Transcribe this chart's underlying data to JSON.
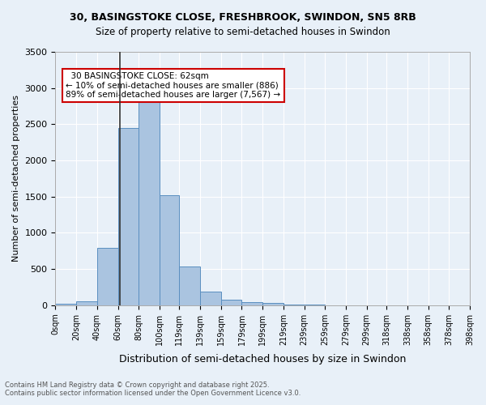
{
  "title_line1": "30, BASINGSTOKE CLOSE, FRESHBROOK, SWINDON, SN5 8RB",
  "title_line2": "Size of property relative to semi-detached houses in Swindon",
  "xlabel": "Distribution of semi-detached houses by size in Swindon",
  "ylabel": "Number of semi-detached properties",
  "bin_labels": [
    "0sqm",
    "20sqm",
    "40sqm",
    "60sqm",
    "80sqm",
    "100sqm",
    "119sqm",
    "139sqm",
    "159sqm",
    "179sqm",
    "199sqm",
    "219sqm",
    "239sqm",
    "259sqm",
    "279sqm",
    "299sqm",
    "318sqm",
    "338sqm",
    "358sqm",
    "378sqm",
    "398sqm"
  ],
  "bin_edges": [
    0,
    20,
    40,
    60,
    80,
    100,
    119,
    139,
    159,
    179,
    199,
    219,
    239,
    259,
    279,
    299,
    318,
    338,
    358,
    378,
    398
  ],
  "bar_heights": [
    20,
    50,
    790,
    2450,
    2890,
    1520,
    540,
    185,
    75,
    45,
    35,
    10,
    5,
    3,
    2,
    1,
    0,
    0,
    0,
    0
  ],
  "bar_color": "#aac4e0",
  "bar_edge_color": "#5a8fc0",
  "property_size": 62,
  "property_label": "30 BASINGSTOKE CLOSE: 62sqm",
  "smaller_pct": "10%",
  "smaller_count": "886",
  "larger_pct": "89%",
  "larger_count": "7,567",
  "annotation_box_color": "#ffffff",
  "annotation_box_edge": "#cc0000",
  "vline_color": "#333333",
  "background_color": "#e8f0f8",
  "grid_color": "#ffffff",
  "ylim": [
    0,
    3500
  ],
  "yticks": [
    0,
    500,
    1000,
    1500,
    2000,
    2500,
    3000,
    3500
  ],
  "footer_line1": "Contains HM Land Registry data © Crown copyright and database right 2025.",
  "footer_line2": "Contains public sector information licensed under the Open Government Licence v3.0."
}
